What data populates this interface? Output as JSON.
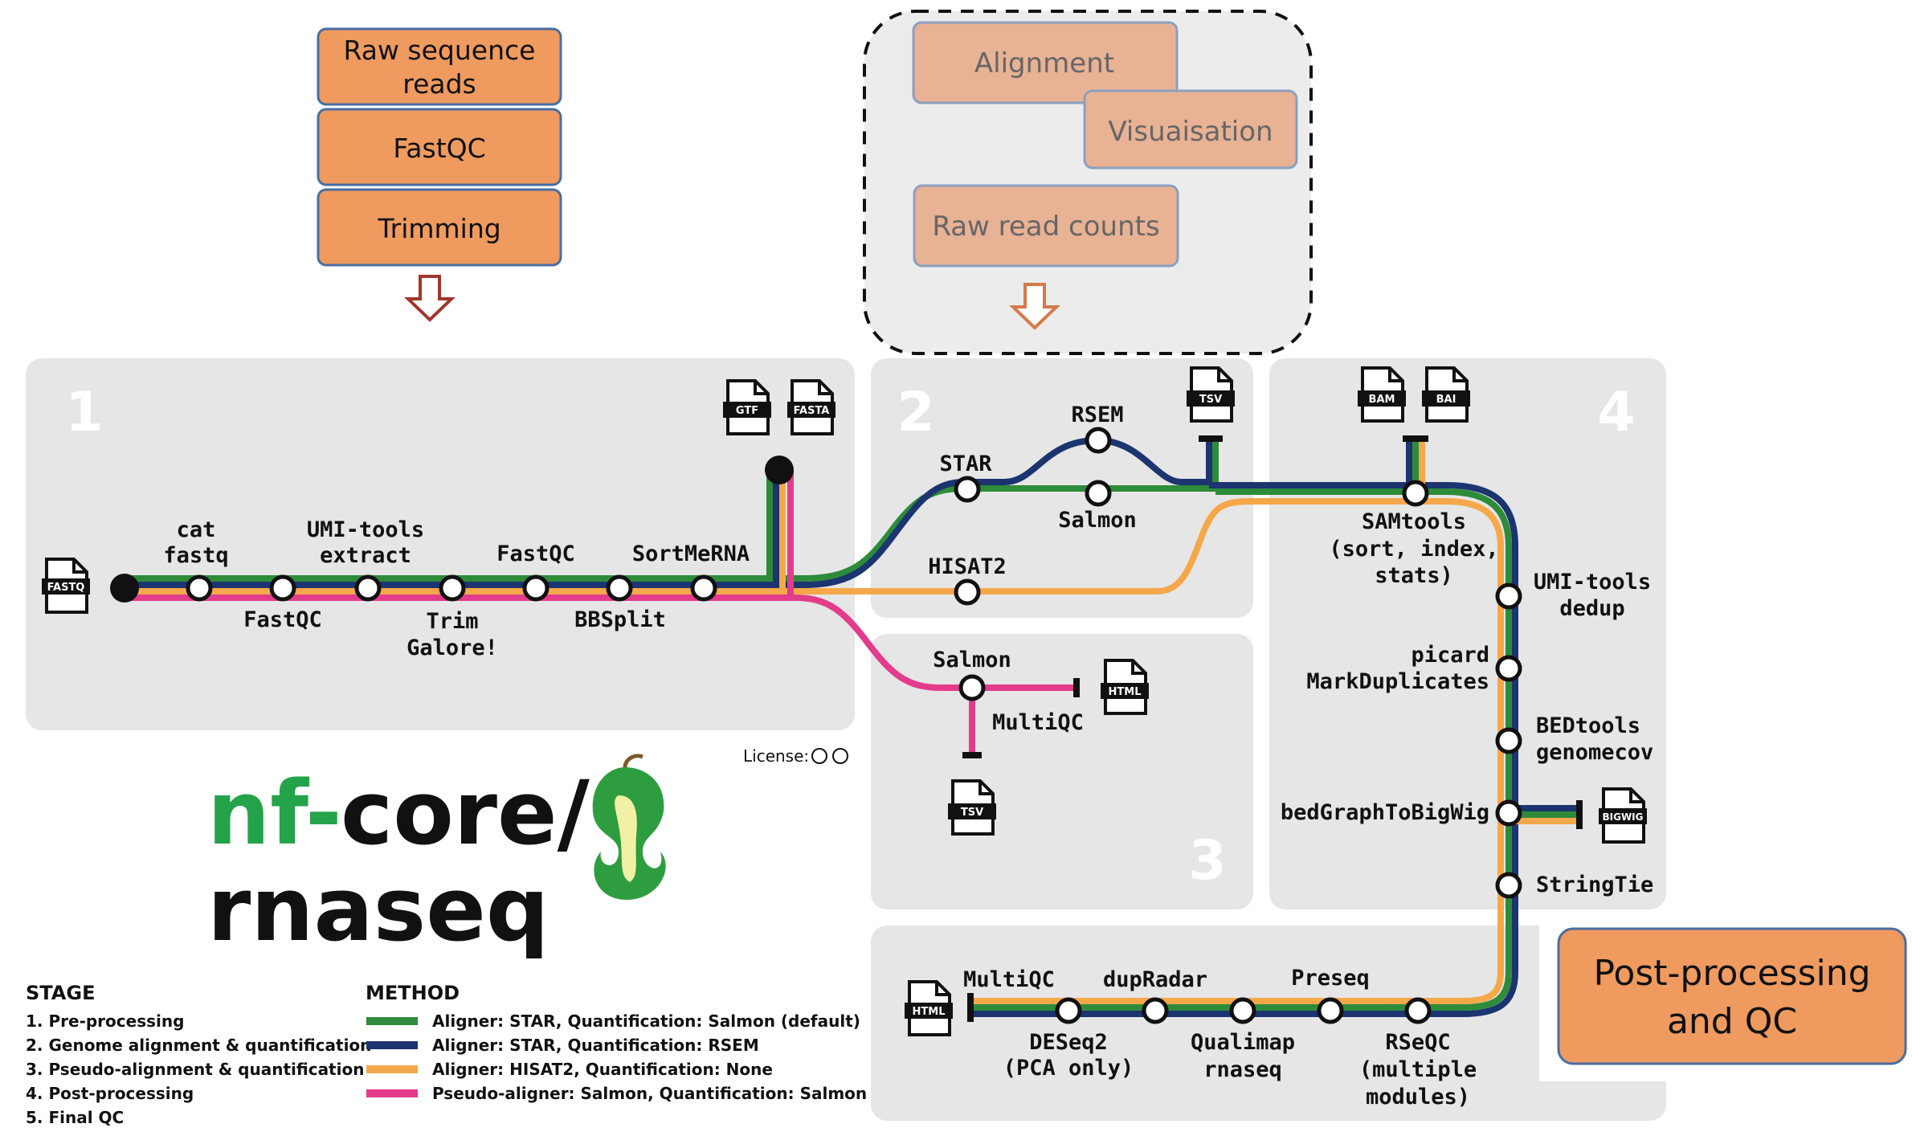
{
  "top_boxes": {
    "raw_reads": "Raw sequence reads",
    "raw_reads_line1": "Raw sequence",
    "raw_reads_line2": "reads",
    "fastqc": "FastQC",
    "trimming": "Trimming",
    "alignment": "Alignment",
    "visualisation": "Visuaisation",
    "raw_counts": "Raw read counts"
  },
  "post_box": {
    "line1": "Post-processing",
    "line2": "and QC"
  },
  "panels": {
    "p1": "1",
    "p2": "2",
    "p3": "3",
    "p4": "4"
  },
  "files": {
    "fastq": "FASTQ",
    "gtf": "GTF",
    "fasta": "FASTA",
    "tsv_top": "TSV",
    "bam": "BAM",
    "bai": "BAI",
    "html_salmon": "HTML",
    "tsv_salmon": "TSV",
    "bigwig": "BIGWIG",
    "html_final": "HTML"
  },
  "steps": {
    "cat_fastq_1": "cat",
    "cat_fastq_2": "fastq",
    "fastqc": "FastQC",
    "umi_extract_1": "UMI-tools",
    "umi_extract_2": "extract",
    "trim_1": "Trim",
    "trim_2": "Galore!",
    "fastqc2": "FastQC",
    "bbsplit": "BBSplit",
    "sortmerna": "SortMeRNA",
    "star": "STAR",
    "rsem": "RSEM",
    "salmon": "Salmon",
    "hisat2": "HISAT2",
    "salmon_pseudo": "Salmon",
    "multiqc_pseudo": "MultiQC",
    "samtools_1": "SAMtools",
    "samtools_2": "(sort, index,",
    "samtools_3": "stats)",
    "umi_dedup_1": "UMI-tools",
    "umi_dedup_2": "dedup",
    "picard_1": "picard",
    "picard_2": "MarkDuplicates",
    "bedtools_1": "BEDtools",
    "bedtools_2": "genomecov",
    "bedgraph": "bedGraphToBigWig",
    "stringtie": "StringTie",
    "multiqc": "MultiQC",
    "dupradar": "dupRadar",
    "preseq": "Preseq",
    "deseq_1": "DESeq2",
    "deseq_2": "(PCA only)",
    "qualimap_1": "Qualimap",
    "qualimap_2": "rnaseq",
    "rseqc_1": "RSeQC",
    "rseqc_2": "(multiple",
    "rseqc_3": "modules)"
  },
  "license": "License:",
  "logo": {
    "nf": "nf",
    "dash": "-",
    "core": "core/",
    "rnaseq": "rnaseq"
  },
  "legend": {
    "stage_title": "STAGE",
    "stages": [
      "1. Pre-processing",
      "2. Genome alignment & quantification",
      "3. Pseudo-alignment & quantification",
      "4. Post-processing",
      "5. Final QC"
    ],
    "method_title": "METHOD",
    "methods": [
      {
        "label": "Aligner: STAR, Quantification: Salmon (default)",
        "color": "#2e8b3a"
      },
      {
        "label": "Aligner: STAR, Quantification: RSEM",
        "color": "#1c3470"
      },
      {
        "label": "Aligner: HISAT2, Quantification: None",
        "color": "#f5a84a"
      },
      {
        "label": "Pseudo-aligner: Salmon, Quantification: Salmon",
        "color": "#e23c8b"
      }
    ]
  },
  "colors": {
    "green": "#2e8b3a",
    "navy": "#1c3470",
    "orange": "#f5a84a",
    "pink": "#e23c8b",
    "box_orange": "#ef9a5f",
    "box_faded": "#e8b294",
    "panel": "#e6e6e6"
  }
}
